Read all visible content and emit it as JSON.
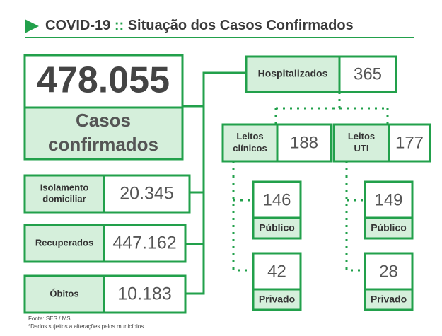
{
  "header": {
    "title_prefix": "COVID-19",
    "separator": "::",
    "title": "Situação dos Casos Confirmados"
  },
  "total": {
    "value": "478.055",
    "label_lines": [
      "Casos",
      "confirmados"
    ]
  },
  "status": [
    {
      "label_lines": [
        "Isolamento",
        "domiciliar"
      ],
      "value": "20.345"
    },
    {
      "label_lines": [
        "Recuperados"
      ],
      "value": "447.162"
    },
    {
      "label_lines": [
        "Óbitos"
      ],
      "value": "10.183"
    }
  ],
  "hospitalized": {
    "label": "Hospitalizados",
    "value": "365"
  },
  "beds": [
    {
      "label_lines": [
        "Leitos",
        "clínicos"
      ],
      "value": "188",
      "public": {
        "value": "146",
        "label": "Público"
      },
      "private": {
        "value": "42",
        "label": "Privado"
      }
    },
    {
      "label_lines": [
        "Leitos",
        "UTI"
      ],
      "value": "177",
      "public": {
        "value": "149",
        "label": "Público"
      },
      "private": {
        "value": "28",
        "label": "Privado"
      }
    }
  ],
  "footer": [
    "Fonte: SES / MS",
    "*Dados sujeitos a alterações pelos municípios."
  ]
}
